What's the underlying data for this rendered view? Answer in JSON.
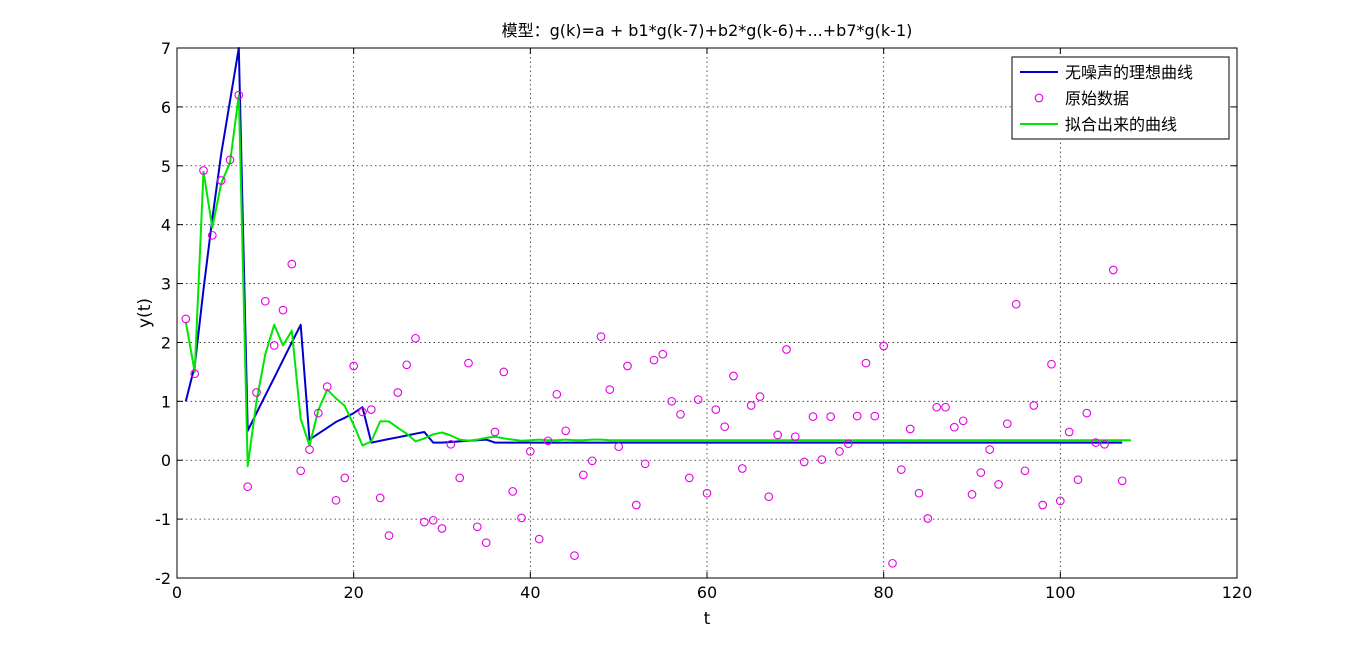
{
  "chart_data": {
    "type": "line",
    "title": "模型：g(k)=a + b1*g(k-7)+b2*g(k-6)+...+b7*g(k-1)",
    "xlabel": "t",
    "ylabel": "y(t)",
    "xlim": [
      0,
      120
    ],
    "ylim": [
      -2,
      7
    ],
    "xticks": [
      0,
      20,
      40,
      60,
      80,
      100,
      120
    ],
    "yticks": [
      -2,
      -1,
      0,
      1,
      2,
      3,
      4,
      5,
      6,
      7
    ],
    "grid": true,
    "legend_position": "top-right",
    "series": [
      {
        "name": "无噪声的理想曲线",
        "style": "line",
        "color": "#0000cc",
        "x": [
          1,
          2,
          3,
          4,
          5,
          6,
          7,
          8,
          9,
          10,
          11,
          12,
          13,
          14,
          15,
          16,
          17,
          18,
          19,
          20,
          21,
          22,
          23,
          24,
          25,
          26,
          27,
          28,
          29,
          30,
          31,
          32,
          33,
          34,
          35,
          36,
          37,
          38,
          39,
          40,
          41,
          42,
          50,
          60,
          70,
          80,
          90,
          100,
          107
        ],
        "y": [
          1.0,
          1.6,
          2.9,
          4.1,
          5.2,
          6.1,
          7.0,
          0.5,
          0.8,
          1.1,
          1.4,
          1.7,
          2.0,
          2.3,
          0.35,
          0.45,
          0.55,
          0.65,
          0.72,
          0.8,
          0.9,
          0.3,
          0.33,
          0.36,
          0.39,
          0.42,
          0.45,
          0.48,
          0.3,
          0.3,
          0.31,
          0.32,
          0.33,
          0.34,
          0.35,
          0.3,
          0.3,
          0.3,
          0.3,
          0.3,
          0.3,
          0.3,
          0.3,
          0.3,
          0.3,
          0.3,
          0.3,
          0.3,
          0.3
        ]
      },
      {
        "name": "原始数据",
        "style": "marker",
        "color": "#e600e6",
        "x": [
          1,
          2,
          3,
          4,
          5,
          6,
          7,
          8,
          9,
          10,
          11,
          12,
          13,
          14,
          15,
          16,
          17,
          18,
          19,
          20,
          21,
          22,
          23,
          24,
          25,
          26,
          27,
          28,
          29,
          30,
          31,
          32,
          33,
          34,
          35,
          36,
          37,
          38,
          39,
          40,
          41,
          42,
          43,
          44,
          45,
          46,
          47,
          48,
          49,
          50,
          51,
          52,
          53,
          54,
          55,
          56,
          57,
          58,
          59,
          60,
          61,
          62,
          63,
          64,
          65,
          66,
          67,
          68,
          69,
          70,
          71,
          72,
          73,
          74,
          75,
          76,
          77,
          78,
          79,
          80,
          81,
          82,
          83,
          84,
          85,
          86,
          87,
          88,
          89,
          90,
          91,
          92,
          93,
          94,
          95,
          96,
          97,
          98,
          99,
          100,
          101,
          102,
          103,
          104,
          105,
          106,
          107
        ],
        "y": [
          2.4,
          1.47,
          4.92,
          3.82,
          4.75,
          5.1,
          6.2,
          -0.45,
          1.15,
          2.7,
          1.95,
          2.55,
          3.33,
          -0.18,
          0.18,
          0.8,
          1.25,
          -0.68,
          -0.3,
          1.6,
          0.82,
          0.86,
          -0.64,
          -1.28,
          1.15,
          1.62,
          2.07,
          -1.05,
          -1.02,
          -1.16,
          0.27,
          -0.3,
          1.65,
          -1.13,
          -1.4,
          0.48,
          1.5,
          -0.53,
          -0.98,
          0.15,
          -1.34,
          0.33,
          1.12,
          0.5,
          -1.62,
          -0.25,
          -0.01,
          2.1,
          1.2,
          0.23,
          1.6,
          -0.76,
          -0.06,
          1.7,
          1.8,
          1.0,
          0.78,
          -0.3,
          1.03,
          -0.56,
          0.86,
          0.57,
          1.43,
          -0.14,
          0.93,
          1.08,
          -0.62,
          0.43,
          1.88,
          0.4,
          -0.03,
          0.74,
          0.01,
          0.74,
          0.15,
          0.28,
          0.75,
          1.65,
          0.75,
          1.94,
          -1.75,
          -0.16,
          0.53,
          -0.56,
          -0.99,
          0.9,
          0.9,
          0.56,
          0.67,
          -0.58,
          -0.21,
          0.18,
          -0.41,
          0.62,
          2.65,
          -0.18,
          0.93,
          -0.76,
          1.63,
          -0.69,
          0.48,
          -0.33,
          0.8,
          0.3,
          0.27,
          3.23,
          -0.35
        ]
      },
      {
        "name": "拟合出来的曲线",
        "style": "line",
        "color": "#00e600",
        "x": [
          1,
          2,
          3,
          4,
          5,
          6,
          7,
          8,
          9,
          10,
          11,
          12,
          13,
          14,
          15,
          16,
          17,
          18,
          19,
          20,
          21,
          22,
          23,
          24,
          25,
          26,
          27,
          28,
          29,
          30,
          31,
          32,
          33,
          34,
          35,
          36,
          37,
          38,
          39,
          40,
          41,
          42,
          43,
          44,
          45,
          46,
          47,
          48,
          49,
          50,
          55,
          60,
          70,
          80,
          90,
          100,
          108
        ],
        "y": [
          2.35,
          1.5,
          4.9,
          3.95,
          4.7,
          5.05,
          6.2,
          -0.1,
          1.0,
          1.8,
          2.3,
          1.95,
          2.2,
          0.7,
          0.25,
          0.85,
          1.2,
          1.05,
          0.92,
          0.6,
          0.25,
          0.32,
          0.66,
          0.66,
          0.55,
          0.45,
          0.32,
          0.37,
          0.44,
          0.47,
          0.42,
          0.35,
          0.33,
          0.35,
          0.38,
          0.4,
          0.37,
          0.35,
          0.33,
          0.34,
          0.35,
          0.34,
          0.34,
          0.35,
          0.34,
          0.34,
          0.35,
          0.35,
          0.34,
          0.34,
          0.34,
          0.34,
          0.34,
          0.34,
          0.34,
          0.34,
          0.34
        ]
      }
    ]
  }
}
